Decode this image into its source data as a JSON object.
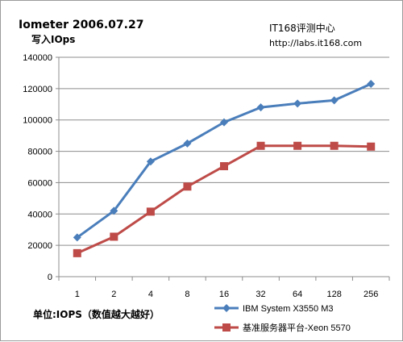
{
  "chart_data": {
    "type": "line",
    "title": "Iometer 2006.07.27",
    "subtitle": "写入IOps",
    "watermark_site": "IT168评测中心",
    "watermark_url": "http://labs.it168.com",
    "footnote": "单位:IOPS（数值越大越好）",
    "categories": [
      "1",
      "2",
      "4",
      "8",
      "16",
      "32",
      "64",
      "128",
      "256"
    ],
    "ylim": [
      0,
      140000
    ],
    "yticks": [
      "0",
      "20000",
      "40000",
      "60000",
      "80000",
      "100000",
      "120000",
      "140000"
    ],
    "grid": true,
    "legend_position": "bottom-right",
    "series": [
      {
        "name": "IBM System X3550 M3",
        "color": "#4a7ebb",
        "marker": "diamond",
        "values": [
          25000,
          42000,
          73500,
          85000,
          98500,
          108000,
          110500,
          112500,
          123000
        ]
      },
      {
        "name": "基准服务器平台-Xeon 5570",
        "color": "#be4b48",
        "marker": "square",
        "values": [
          15000,
          25500,
          41500,
          57500,
          70500,
          83500,
          83500,
          83500,
          83000
        ]
      }
    ]
  }
}
